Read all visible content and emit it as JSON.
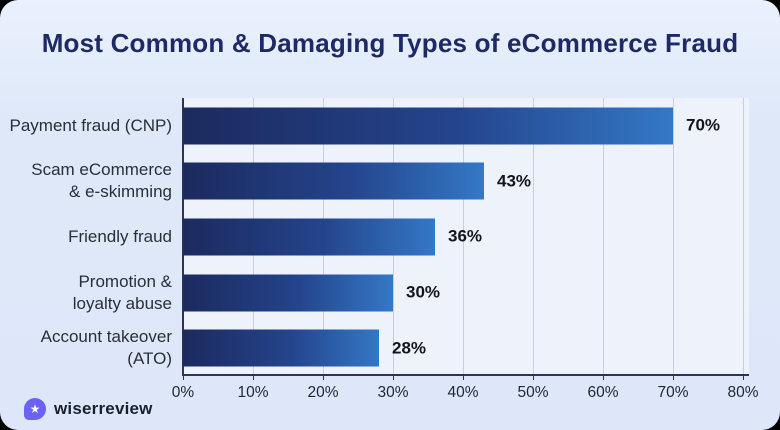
{
  "title": "Most Common & Damaging Types of eCommerce Fraud",
  "brand": {
    "name": "wiserreview",
    "icon": "star-badge",
    "icon_color": "#6b62f3",
    "star_glyph": "★"
  },
  "colors": {
    "card_background": "#dde7f9",
    "plot_background": "#eef2fb",
    "gridline": "#c5cedf",
    "axis": "#2c3552",
    "bar_gradient_start": "#1c2a5e",
    "bar_gradient_end": "#3478c5",
    "title_text": "#1e2a66",
    "value_text": "#12151c"
  },
  "chart_data": {
    "type": "bar",
    "orientation": "horizontal",
    "title": "Most Common & Damaging Types of eCommerce Fraud",
    "categories": [
      "Payment fraud (CNP)",
      "Scam eCommerce\n& e-skimming",
      "Friendly fraud",
      "Promotion &\nloyalty abuse",
      "Account takeover\n(ATO)"
    ],
    "values": [
      70,
      43,
      36,
      30,
      28
    ],
    "value_labels": [
      "70%",
      "43%",
      "36%",
      "30%",
      "28%"
    ],
    "xlabel": "",
    "ylabel": "",
    "xlim": [
      0,
      80
    ],
    "x_tick_labels": [
      "0%",
      "10%",
      "20%",
      "30%",
      "40%",
      "50%",
      "60%",
      "70%",
      "80%"
    ],
    "grid": "vertical",
    "legend": "none"
  }
}
